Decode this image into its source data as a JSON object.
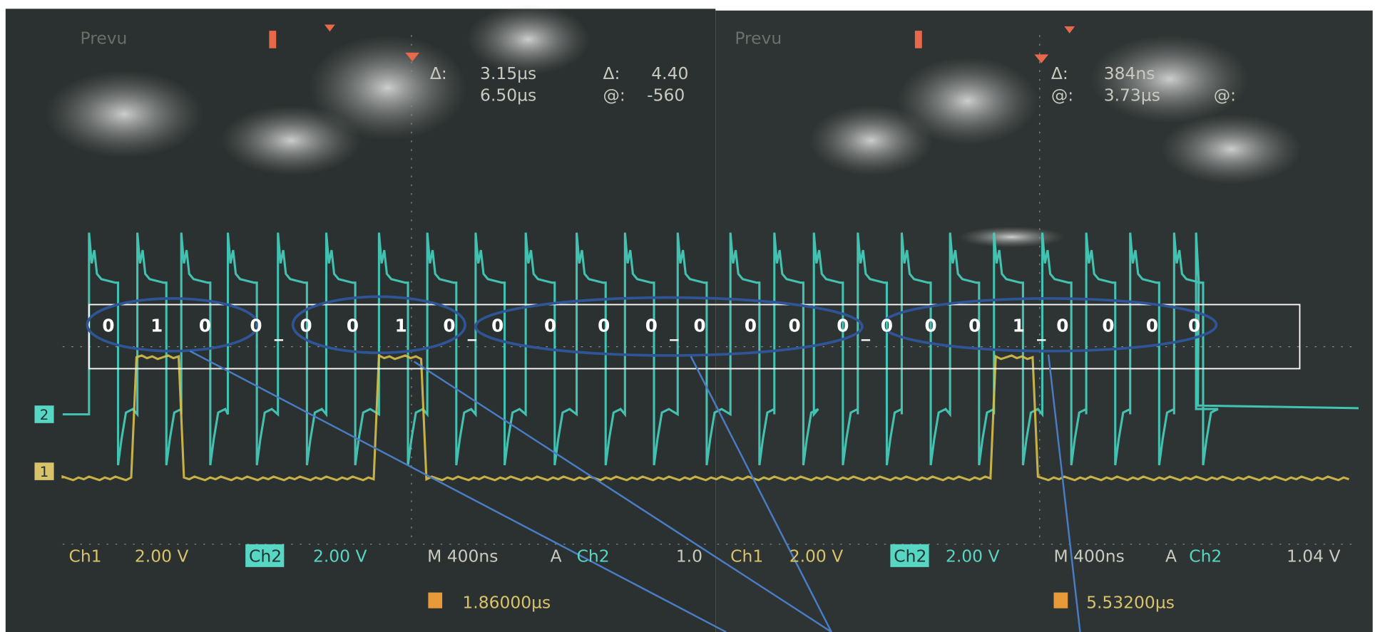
{
  "left_scope": {
    "menu": "Prevu",
    "cursor_delta_label": "Δ:",
    "cursor_delta": "3.15µs",
    "cursor_at": "6.50µs",
    "volt_delta_label": "Δ:",
    "volt_delta": "4.40",
    "volt_at_label": "@:",
    "volt_at": "-560",
    "ch1": "Ch1",
    "ch1_scale": "2.00 V",
    "ch2": "Ch2",
    "ch2_scale": "2.00 V",
    "timebase": "M 400ns",
    "trigger_mode": "A",
    "trigger_source": "Ch2",
    "trigger_level": "1.0",
    "trigger_position": "1.86000µs"
  },
  "right_scope": {
    "menu": "Prevu",
    "cursor_delta_label": "Δ:",
    "cursor_delta": "384ns",
    "cursor_at_label": "@:",
    "cursor_at": "3.73µs",
    "volt_at_label": "@:",
    "ch1": "Ch1",
    "ch1_scale": "2.00 V",
    "ch2": "Ch2",
    "ch2_scale": "2.00 V",
    "timebase": "M 400ns",
    "trigger_mode": "A",
    "trigger_source": "Ch2",
    "trigger_level": "1.04 V",
    "trigger_position": "5.53200µs"
  },
  "channel_markers": [
    "2",
    "1"
  ],
  "bit_groups": [
    [
      "0",
      "1",
      "0",
      "0"
    ],
    [
      "0",
      "0",
      "1",
      "0"
    ],
    [
      "0",
      "0",
      "0",
      "0"
    ],
    [
      "0",
      "0",
      "0",
      "0"
    ],
    [
      "0",
      "0",
      "0",
      "1"
    ],
    [
      "0",
      "0",
      "0",
      "0"
    ]
  ],
  "separator": "_"
}
